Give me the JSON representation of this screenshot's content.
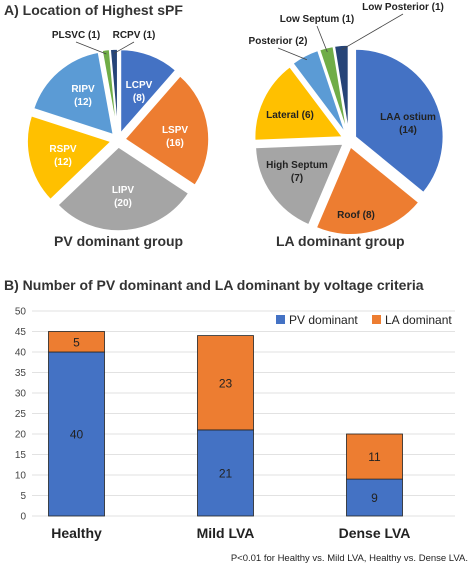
{
  "section_a_title": "A) Location of Highest sPF",
  "section_b_title": "B) Number of PV dominant and LA dominant by voltage criteria",
  "footnote": "P<0.01 for Healthy vs. Mild LVA, Healthy vs. Dense LVA.",
  "chart_data": [
    {
      "type": "pie",
      "caption": "PV dominant group",
      "slices": [
        {
          "name": "LCPV",
          "value": 8,
          "label": "LCPV\n(8)",
          "color": "#4472c4"
        },
        {
          "name": "LSPV",
          "value": 16,
          "label": "LSPV\n(16)",
          "color": "#ed7d31"
        },
        {
          "name": "LIPV",
          "value": 20,
          "label": "LIPV\n(20)",
          "color": "#a5a5a5"
        },
        {
          "name": "RSPV",
          "value": 12,
          "label": "RSPV\n(12)",
          "color": "#ffc000"
        },
        {
          "name": "RIPV",
          "value": 12,
          "label": "RIPV\n(12)",
          "color": "#5b9bd5"
        },
        {
          "name": "PLSVC",
          "value": 1,
          "label": "PLSVC (1)",
          "color": "#70ad47"
        },
        {
          "name": "RCPV",
          "value": 1,
          "label": "RCPV (1)",
          "color": "#264478"
        }
      ]
    },
    {
      "type": "pie",
      "caption": "LA dominant group",
      "slices": [
        {
          "name": "LAA ostium",
          "value": 14,
          "label": "LAA ostium\n(14)",
          "color": "#4472c4"
        },
        {
          "name": "Roof",
          "value": 8,
          "label": "Roof (8)",
          "color": "#ed7d31"
        },
        {
          "name": "High Septum",
          "value": 7,
          "label": "High Septum\n(7)",
          "color": "#a5a5a5"
        },
        {
          "name": "Lateral",
          "value": 6,
          "label": "Lateral (6)",
          "color": "#ffc000"
        },
        {
          "name": "Posterior",
          "value": 2,
          "label": "Posterior (2)",
          "color": "#5b9bd5"
        },
        {
          "name": "Low Septum",
          "value": 1,
          "label": "Low Septum (1)",
          "color": "#70ad47"
        },
        {
          "name": "Low Posterior",
          "value": 1,
          "label": "Low Posterior (1)",
          "color": "#264478"
        }
      ]
    },
    {
      "type": "bar",
      "stacked": true,
      "categories": [
        "Healthy",
        "Mild LVA",
        "Dense LVA"
      ],
      "series": [
        {
          "name": "PV dominant",
          "values": [
            40,
            21,
            9
          ],
          "color": "#4472c4"
        },
        {
          "name": "LA dominant",
          "values": [
            5,
            23,
            11
          ],
          "color": "#ed7d31"
        }
      ],
      "ylim": [
        0,
        50
      ],
      "yticks": [
        0,
        5,
        10,
        15,
        20,
        25,
        30,
        35,
        40,
        45,
        50
      ],
      "legend": "top-right",
      "grid": true
    }
  ]
}
